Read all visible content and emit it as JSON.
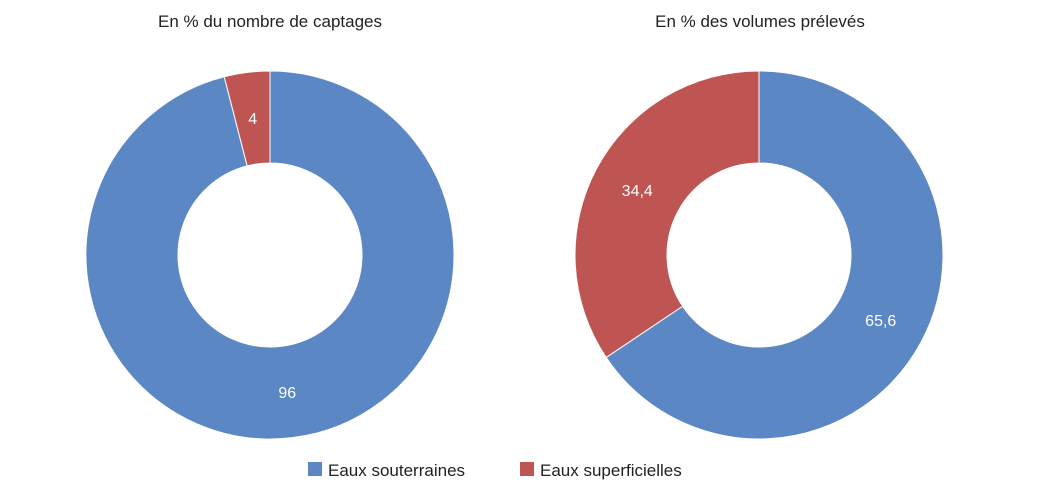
{
  "legend": {
    "items": [
      {
        "label": "Eaux souterraines",
        "color": "#5B87C4"
      },
      {
        "label": "Eaux superficielles",
        "color": "#BE5552"
      }
    ]
  },
  "chart_data": [
    {
      "type": "pie",
      "title": "En % du nombre de captages",
      "categories": [
        "Eaux souterraines",
        "Eaux superficielles"
      ],
      "values": [
        96,
        4
      ],
      "value_labels": [
        "96",
        "4"
      ],
      "colors": [
        "#5B87C4",
        "#BE5552"
      ],
      "style": "donut",
      "legend_position": "bottom"
    },
    {
      "type": "pie",
      "title": "En % des volumes prélevés",
      "categories": [
        "Eaux souterraines",
        "Eaux superficielles"
      ],
      "values": [
        65.6,
        34.4
      ],
      "value_labels": [
        "65,6",
        "34,4"
      ],
      "colors": [
        "#5B87C4",
        "#BE5552"
      ],
      "style": "donut",
      "legend_position": "bottom"
    }
  ]
}
